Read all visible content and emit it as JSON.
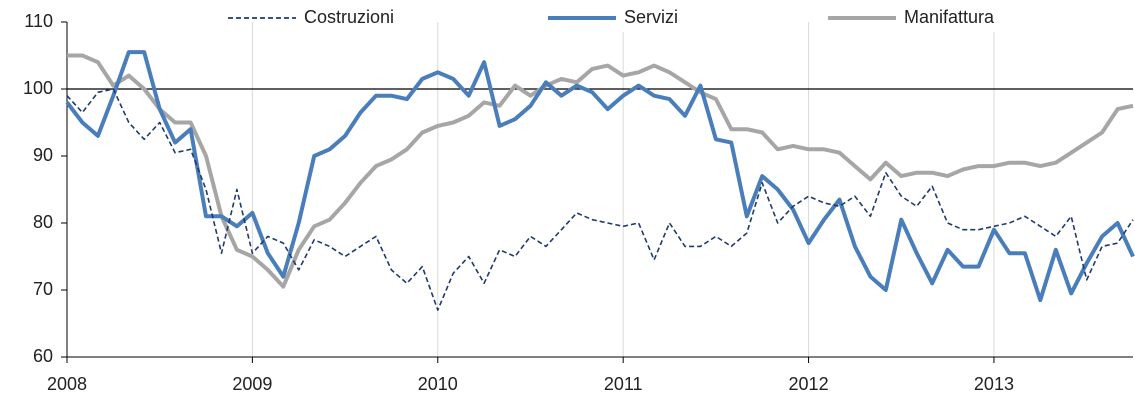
{
  "chart_data": {
    "type": "line",
    "categories": [
      "2008",
      null,
      null,
      null,
      null,
      null,
      null,
      null,
      null,
      null,
      null,
      null,
      "2009",
      null,
      null,
      null,
      null,
      null,
      null,
      null,
      null,
      null,
      null,
      null,
      "2010",
      null,
      null,
      null,
      null,
      null,
      null,
      null,
      null,
      null,
      null,
      null,
      "2011",
      null,
      null,
      null,
      null,
      null,
      null,
      null,
      null,
      null,
      null,
      null,
      "2012",
      null,
      null,
      null,
      null,
      null,
      null,
      null,
      null,
      null,
      null,
      null,
      "2013",
      null,
      null,
      null,
      null,
      null,
      null,
      null,
      null,
      null
    ],
    "series": [
      {
        "name": "Costruzioni",
        "color": "#1f3a6e",
        "style": "dashed",
        "values": [
          99,
          96.5,
          99.5,
          100,
          95,
          92.5,
          95,
          90.5,
          91,
          85,
          75.5,
          85,
          75.5,
          78,
          77,
          73,
          77.5,
          76.5,
          75,
          76.5,
          78,
          73,
          71,
          73.5,
          67,
          72.5,
          75,
          71,
          76,
          75,
          78,
          76.5,
          79,
          81.5,
          80.5,
          80,
          79.5,
          80,
          74.5,
          80,
          76.5,
          76.5,
          78,
          76.5,
          78.5,
          86,
          80,
          82.5,
          84,
          83,
          82.5,
          84,
          81,
          87.5,
          84,
          82.5,
          85.5,
          80,
          79,
          79,
          79.5,
          80,
          81,
          79.5,
          78,
          81,
          71.5,
          76.5,
          77,
          80.5
        ]
      },
      {
        "name": "Servizi",
        "color": "#4a7ebb",
        "style": "solid",
        "values": [
          98,
          95,
          93,
          99,
          105.5,
          105.5,
          97,
          92,
          94,
          81,
          81,
          79.5,
          81.5,
          75.5,
          72,
          80,
          90,
          91,
          93,
          96.5,
          99,
          99,
          98.5,
          101.5,
          102.5,
          101.5,
          99,
          104,
          94.5,
          95.5,
          97.5,
          101,
          99,
          100.5,
          99.5,
          97,
          99,
          100.5,
          99,
          98.5,
          96,
          100.5,
          92.5,
          92,
          81,
          87,
          85,
          82,
          77,
          80.5,
          83.5,
          76.5,
          72,
          70,
          80.5,
          75.5,
          71,
          76,
          73.5,
          73.5,
          79,
          75.5,
          75.5,
          68.5,
          76,
          69.5,
          74,
          78,
          80,
          75
        ]
      },
      {
        "name": "Manifattura",
        "color": "#a6a6a6",
        "style": "solid",
        "values": [
          105,
          105,
          104,
          100.5,
          102,
          100,
          97,
          95,
          95,
          90,
          81,
          76,
          75,
          73,
          70.5,
          76,
          79.5,
          80.5,
          83,
          86,
          88.5,
          89.5,
          91,
          93.5,
          94.5,
          95,
          96,
          98,
          97.5,
          100.5,
          99,
          100.5,
          101.5,
          101,
          103,
          103.5,
          102,
          102.5,
          103.5,
          102.5,
          101,
          99.5,
          98.5,
          94,
          94,
          93.5,
          91,
          91.5,
          91,
          91,
          90.5,
          88.5,
          86.5,
          89,
          87,
          87.5,
          87.5,
          87,
          88,
          88.5,
          88.5,
          89,
          89,
          88.5,
          89,
          90.5,
          92,
          93.5,
          97,
          97.5
        ]
      }
    ],
    "ylim": [
      60,
      110
    ],
    "yticks": [
      60,
      70,
      80,
      90,
      100,
      110
    ],
    "hline": 100,
    "grid": true,
    "legend": "top"
  }
}
